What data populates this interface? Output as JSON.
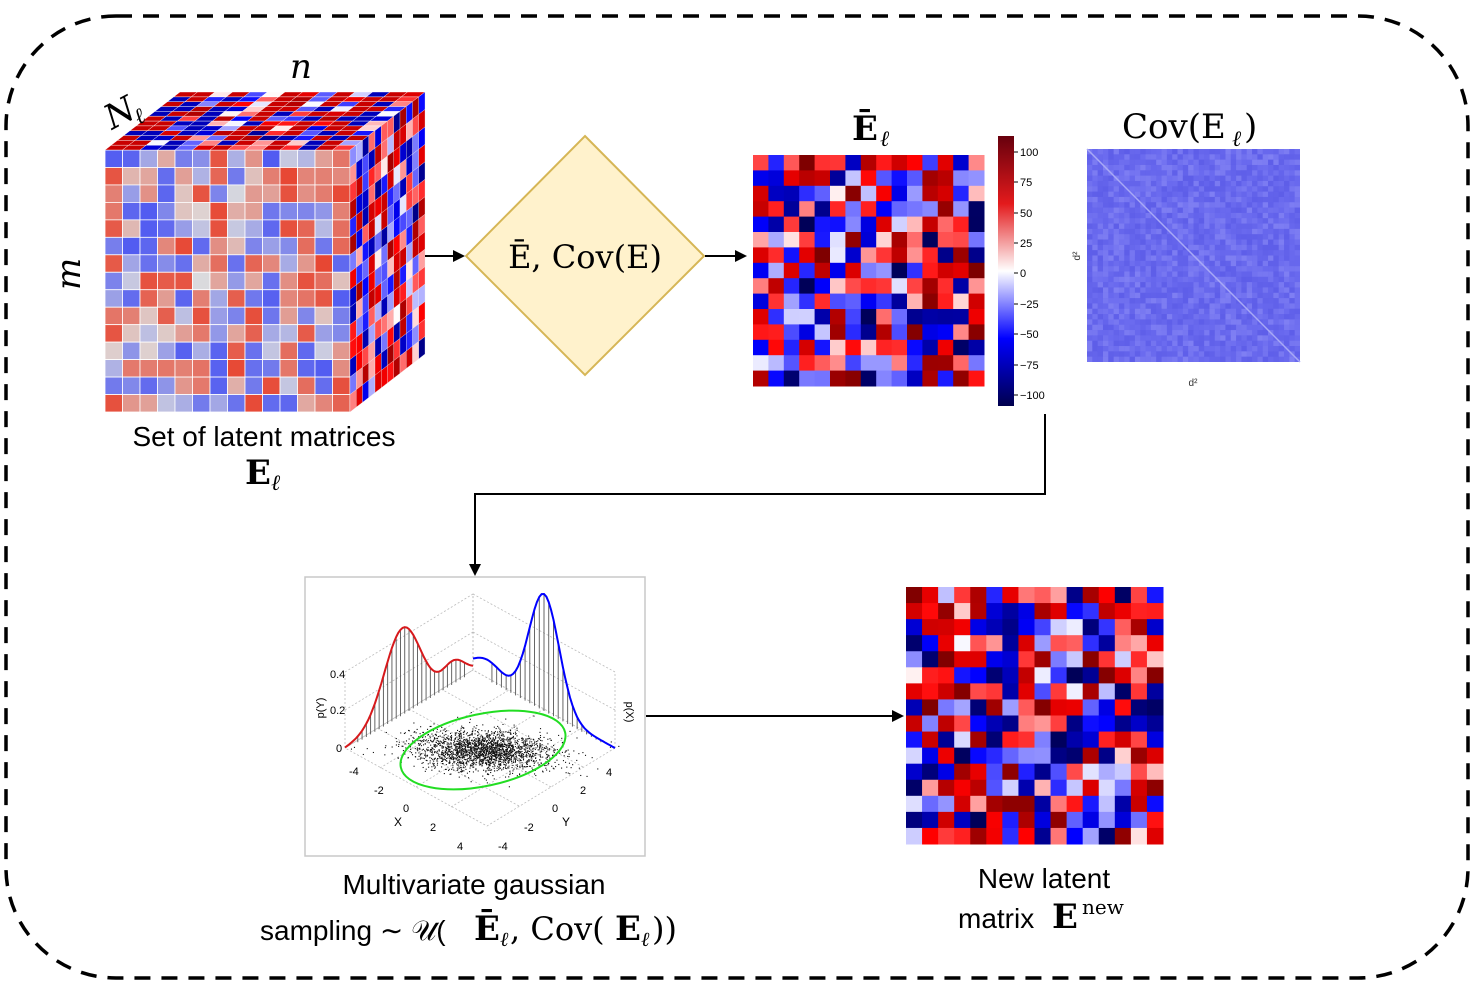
{
  "cube": {
    "label_n": "n",
    "label_N": "N",
    "label_N_sub": "ℓ",
    "label_m": "m",
    "caption_line1": "Set of latent matrices",
    "caption_line2": "E",
    "caption_line2_sub": "ℓ"
  },
  "decision": {
    "label": "Ē, Cov(E)"
  },
  "mean_matrix": {
    "title": "Ē",
    "title_sub": "ℓ",
    "colorbar_ticks": [
      "100",
      "75",
      "50",
      "25",
      "0",
      "−25",
      "−50",
      "−75",
      "−100"
    ]
  },
  "cov_matrix": {
    "title": "Cov(E",
    "title_sub": "ℓ",
    "title_end": ")",
    "xlabel": "d²",
    "ylabel": "d²"
  },
  "gaussian_plot": {
    "ylabel_left": "p(Y)",
    "ylabel_right": "p(X)",
    "yticks": [
      "0.4",
      "0.2",
      "0"
    ],
    "x_axis_name": "X",
    "y_axis_name": "Y",
    "x_ticks": [
      "-4",
      "-2",
      "0",
      "2",
      "4"
    ],
    "y_ticks": [
      "4",
      "2",
      "0",
      "-2",
      "-4"
    ],
    "caption_line1": "Multivariate gaussian",
    "caption_line2_a": "sampling ∼ 𝒰(",
    "caption_line2_b": "Ē",
    "caption_line2_b_sub": "ℓ",
    "caption_line2_c": ", Cov(",
    "caption_line2_d": "E",
    "caption_line2_d_sub": "ℓ",
    "caption_line2_e": "))"
  },
  "new_matrix": {
    "caption_line1": "New latent",
    "caption_line2": "matrix ",
    "caption_line2_bold": "E",
    "caption_line2_sup": "new"
  },
  "colors": {
    "red": "#d7191c",
    "blue": "#0000ff",
    "diamond_fill": "#fff2cc",
    "diamond_stroke": "#d6b656",
    "ellipse": "#22dd22",
    "cov_base": "#6b6bef"
  }
}
